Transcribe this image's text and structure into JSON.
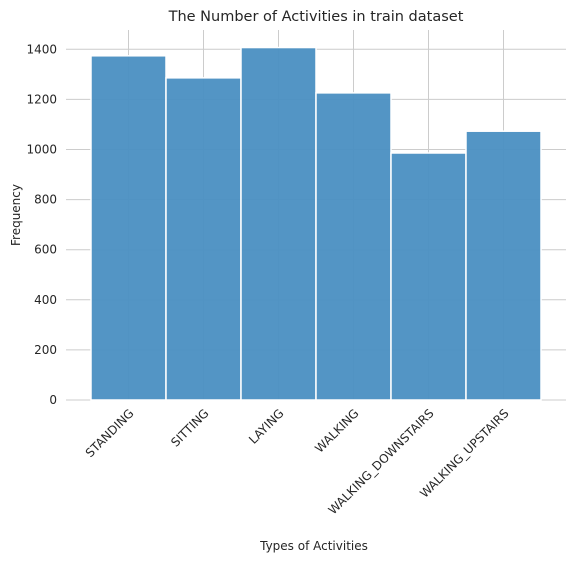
{
  "chart_data": {
    "type": "bar",
    "title": "The Number of Activities in train dataset",
    "xlabel": "Types of Activities",
    "ylabel": "Frequency",
    "categories": [
      "STANDING",
      "SITTING",
      "LAYING",
      "WALKING",
      "WALKING_DOWNSTAIRS",
      "WALKING_UPSTAIRS"
    ],
    "values": [
      1374,
      1286,
      1407,
      1226,
      986,
      1073
    ],
    "ylim": [
      0,
      1477
    ],
    "yticks": [
      0,
      200,
      400,
      600,
      800,
      1000,
      1200,
      1400
    ],
    "grid": true,
    "legend": "none",
    "bar_color": "#4a8fc2",
    "bar_edge_color": "#ffffff",
    "grid_color": "#cccccc",
    "background": "#ffffff"
  }
}
